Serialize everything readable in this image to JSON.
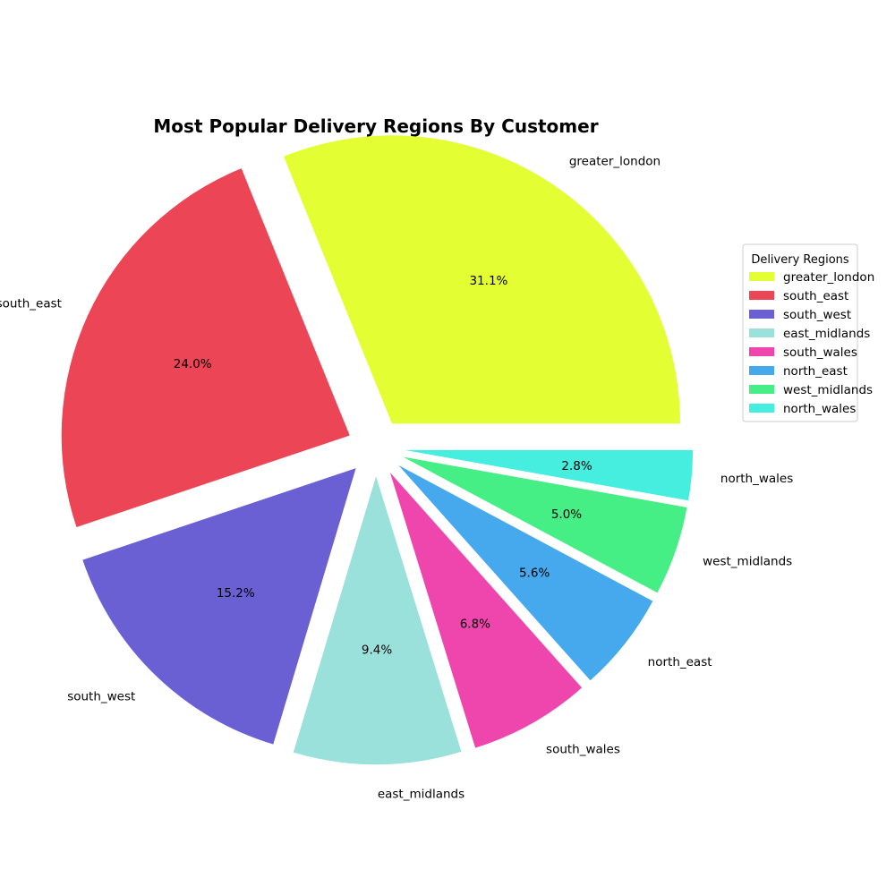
{
  "chart_data": {
    "type": "pie",
    "title": "Most Popular Delivery Regions By Customer",
    "legend_title": "Delivery Regions",
    "legend_position": "right",
    "categories": [
      "greater_london",
      "south_east",
      "south_west",
      "east_midlands",
      "south_wales",
      "north_east",
      "west_midlands",
      "north_wales"
    ],
    "values": [
      31.1,
      24.0,
      15.2,
      9.4,
      6.8,
      5.6,
      5.0,
      2.8
    ],
    "percent_labels": [
      "31.1%",
      "24.0%",
      "15.2%",
      "9.4%",
      "6.8%",
      "5.6%",
      "5.0%",
      "2.8%"
    ],
    "colors": [
      "#e3ff33",
      "#ec4556",
      "#6a60d3",
      "#9ae0db",
      "#ee46ad",
      "#46a9ee",
      "#46ee86",
      "#46eedf"
    ]
  }
}
